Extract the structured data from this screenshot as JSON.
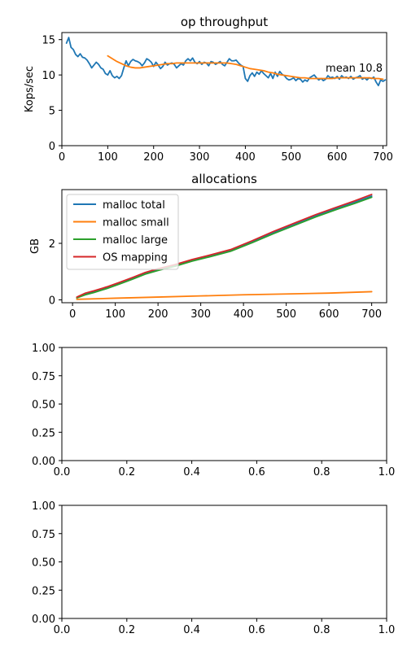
{
  "charts": [
    {
      "type": "line",
      "title": "op throughput",
      "ylabel": "Kops/sec",
      "xlim": [
        0,
        708
      ],
      "ylim": [
        0,
        16
      ],
      "xticks": [
        0,
        100,
        200,
        300,
        400,
        500,
        600,
        700
      ],
      "yticks": [
        0,
        5,
        10,
        15
      ],
      "annotation": {
        "text": "mean 10.8",
        "x": 575,
        "y": 10.8
      },
      "series": [
        {
          "color": "#1f77b4",
          "x": [
            10,
            15,
            20,
            25,
            30,
            35,
            40,
            45,
            50,
            55,
            60,
            65,
            70,
            75,
            80,
            85,
            90,
            95,
            100,
            105,
            110,
            115,
            120,
            125,
            130,
            135,
            140,
            145,
            150,
            155,
            160,
            165,
            170,
            175,
            180,
            185,
            190,
            195,
            200,
            205,
            210,
            215,
            220,
            225,
            230,
            235,
            240,
            245,
            250,
            255,
            260,
            265,
            270,
            275,
            280,
            285,
            290,
            295,
            300,
            305,
            310,
            315,
            320,
            325,
            330,
            335,
            340,
            345,
            350,
            355,
            360,
            365,
            370,
            375,
            380,
            385,
            390,
            395,
            400,
            405,
            410,
            415,
            420,
            425,
            430,
            435,
            440,
            445,
            450,
            455,
            460,
            465,
            470,
            475,
            480,
            485,
            490,
            495,
            500,
            505,
            510,
            515,
            520,
            525,
            530,
            535,
            540,
            545,
            550,
            555,
            560,
            565,
            570,
            575,
            580,
            585,
            590,
            595,
            600,
            605,
            610,
            615,
            620,
            625,
            630,
            635,
            640,
            645,
            650,
            655,
            660,
            665,
            670,
            675,
            680,
            685,
            690,
            695,
            700,
            705
          ],
          "y": [
            14.5,
            15.3,
            13.9,
            13.6,
            12.9,
            12.6,
            13.0,
            12.5,
            12.4,
            12.1,
            11.6,
            11.0,
            11.4,
            11.8,
            11.5,
            11.0,
            10.8,
            10.2,
            10.0,
            10.6,
            9.9,
            9.6,
            9.8,
            9.5,
            9.9,
            11.0,
            12.0,
            11.3,
            11.9,
            12.2,
            12.0,
            11.9,
            11.7,
            11.3,
            11.7,
            12.3,
            12.1,
            11.8,
            11.2,
            11.8,
            11.4,
            10.9,
            11.2,
            11.8,
            11.4,
            11.6,
            11.7,
            11.5,
            11.0,
            11.3,
            11.6,
            11.4,
            12.0,
            12.3,
            12.0,
            12.4,
            11.8,
            11.6,
            11.9,
            11.5,
            11.8,
            11.7,
            11.3,
            11.9,
            11.8,
            11.5,
            11.7,
            11.9,
            11.5,
            11.3,
            11.8,
            12.3,
            12.0,
            12.0,
            12.1,
            11.7,
            11.4,
            11.2,
            9.5,
            9.1,
            9.9,
            10.3,
            9.8,
            10.4,
            10.1,
            10.6,
            10.2,
            9.9,
            9.6,
            10.2,
            9.5,
            10.4,
            9.8,
            10.5,
            10.1,
            9.9,
            9.5,
            9.3,
            9.4,
            9.6,
            9.2,
            9.5,
            9.4,
            9.0,
            9.3,
            9.1,
            9.6,
            9.8,
            10.0,
            9.6,
            9.3,
            9.5,
            9.2,
            9.4,
            9.9,
            9.6,
            9.7,
            9.5,
            9.8,
            9.4,
            9.9,
            9.6,
            9.7,
            9.5,
            9.8,
            9.4,
            9.6,
            9.7,
            9.9,
            9.4,
            9.6,
            9.3,
            9.6,
            9.5,
            9.7,
            9.0,
            8.5,
            9.3,
            9.1,
            9.3
          ]
        },
        {
          "color": "#ff7f0e",
          "x": [
            100,
            110,
            120,
            130,
            140,
            150,
            160,
            170,
            180,
            190,
            200,
            210,
            220,
            230,
            240,
            250,
            260,
            270,
            280,
            290,
            300,
            310,
            320,
            330,
            340,
            350,
            360,
            370,
            380,
            390,
            400,
            410,
            420,
            430,
            440,
            450,
            460,
            470,
            480,
            490,
            500,
            510,
            520,
            530,
            540,
            550,
            560,
            570,
            580,
            590,
            600,
            610,
            620,
            630,
            640,
            650,
            660,
            670,
            680,
            690,
            700
          ],
          "y": [
            12.7,
            12.3,
            11.9,
            11.6,
            11.3,
            11.1,
            11.0,
            11.0,
            11.1,
            11.2,
            11.3,
            11.4,
            11.5,
            11.6,
            11.6,
            11.7,
            11.7,
            11.7,
            11.7,
            11.7,
            11.7,
            11.7,
            11.7,
            11.7,
            11.7,
            11.7,
            11.7,
            11.6,
            11.5,
            11.3,
            11.1,
            10.9,
            10.8,
            10.7,
            10.6,
            10.4,
            10.3,
            10.1,
            10.0,
            9.9,
            9.8,
            9.7,
            9.6,
            9.6,
            9.5,
            9.5,
            9.5,
            9.5,
            9.5,
            9.5,
            9.6,
            9.6,
            9.6,
            9.6,
            9.6,
            9.6,
            9.6,
            9.6,
            9.5,
            9.5,
            9.4
          ]
        }
      ]
    },
    {
      "type": "line",
      "title": "allocations",
      "ylabel": "GB",
      "xlim": [
        -25,
        735
      ],
      "ylim": [
        -0.1,
        3.9
      ],
      "xticks": [
        0,
        100,
        200,
        300,
        400,
        500,
        600,
        700
      ],
      "yticks": [
        0,
        2
      ],
      "legend": "upper-left",
      "series": [
        {
          "name": "malloc total",
          "color": "#1f77b4",
          "x": [
            10,
            30,
            50,
            80,
            110,
            140,
            170,
            200,
            240,
            280,
            320,
            370,
            420,
            470,
            520,
            570,
            620,
            660,
            700
          ],
          "y": [
            0.09,
            0.22,
            0.3,
            0.44,
            0.6,
            0.77,
            0.95,
            1.08,
            1.22,
            1.4,
            1.55,
            1.75,
            2.05,
            2.38,
            2.68,
            2.98,
            3.25,
            3.45,
            3.67
          ]
        },
        {
          "name": "malloc small",
          "color": "#ff7f0e",
          "x": [
            10,
            100,
            200,
            300,
            400,
            500,
            600,
            700
          ],
          "y": [
            0.02,
            0.06,
            0.1,
            0.14,
            0.18,
            0.21,
            0.24,
            0.29
          ]
        },
        {
          "name": "malloc large",
          "color": "#2ca02c",
          "x": [
            10,
            30,
            50,
            80,
            110,
            140,
            170,
            200,
            240,
            280,
            320,
            370,
            420,
            470,
            520,
            570,
            620,
            660,
            700
          ],
          "y": [
            0.07,
            0.18,
            0.26,
            0.4,
            0.56,
            0.73,
            0.91,
            1.04,
            1.19,
            1.37,
            1.52,
            1.72,
            2.02,
            2.34,
            2.64,
            2.94,
            3.21,
            3.41,
            3.63
          ]
        },
        {
          "name": "OS mapping",
          "color": "#d62728",
          "x": [
            10,
            30,
            50,
            80,
            110,
            140,
            170,
            200,
            240,
            280,
            320,
            370,
            420,
            470,
            520,
            570,
            620,
            660,
            700
          ],
          "y": [
            0.1,
            0.24,
            0.32,
            0.46,
            0.62,
            0.79,
            0.97,
            1.1,
            1.25,
            1.43,
            1.58,
            1.78,
            2.09,
            2.42,
            2.72,
            3.02,
            3.29,
            3.5,
            3.73
          ]
        }
      ]
    },
    {
      "type": "line",
      "xlim": [
        0,
        1
      ],
      "ylim": [
        0,
        1
      ],
      "xticks": [
        "0.0",
        "0.2",
        "0.4",
        "0.6",
        "0.8",
        "1.0"
      ],
      "yticks": [
        "0.00",
        "0.25",
        "0.50",
        "0.75",
        "1.00"
      ],
      "series": []
    },
    {
      "type": "line",
      "xlim": [
        0,
        1
      ],
      "ylim": [
        0,
        1
      ],
      "xticks": [
        "0.0",
        "0.2",
        "0.4",
        "0.6",
        "0.8",
        "1.0"
      ],
      "yticks": [
        "0.00",
        "0.25",
        "0.50",
        "0.75",
        "1.00"
      ],
      "series": []
    }
  ]
}
